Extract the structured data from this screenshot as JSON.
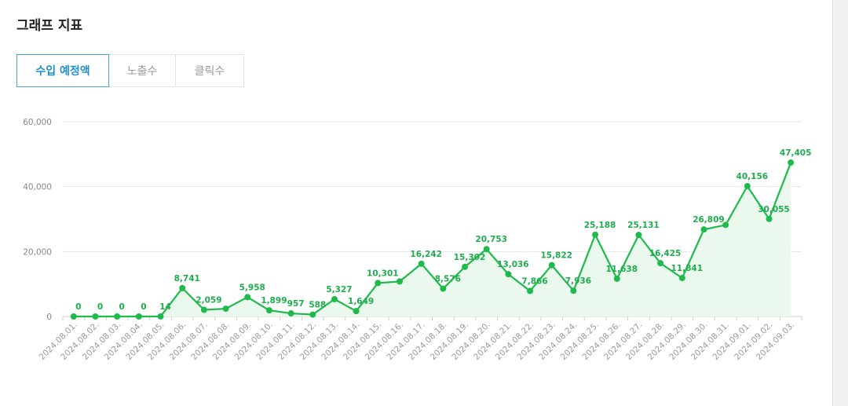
{
  "header": {
    "title": "그래프 지표"
  },
  "tabs": [
    {
      "label": "수입 예정액",
      "active": true
    },
    {
      "label": "노출수",
      "active": false
    },
    {
      "label": "클릭수",
      "active": false
    }
  ],
  "colors": {
    "line": "#1fba4c",
    "area": "#eaf8ee",
    "grid": "#e6e6e6",
    "active_tab": "#4aa8d8"
  },
  "chart_data": {
    "type": "area",
    "title": "",
    "xlabel": "",
    "ylabel": "",
    "ylim": [
      0,
      60000
    ],
    "yticks": [
      0,
      20000,
      40000,
      60000
    ],
    "ytick_labels": [
      "0",
      "20,000",
      "40,000",
      "60,000"
    ],
    "grid": true,
    "categories": [
      "2024.08.01.",
      "2024.08.02.",
      "2024.08.03.",
      "2024.08.04.",
      "2024.08.05.",
      "2024.08.06.",
      "2024.08.07.",
      "2024.08.08.",
      "2024.08.09.",
      "2024.08.10.",
      "2024.08.11.",
      "2024.08.12.",
      "2024.08.13.",
      "2024.08.14.",
      "2024.08.15.",
      "2024.08.16.",
      "2024.08.17.",
      "2024.08.18.",
      "2024.08.19.",
      "2024.08.20.",
      "2024.08.21.",
      "2024.08.22.",
      "2024.08.23.",
      "2024.08.24.",
      "2024.08.25.",
      "2024.08.26.",
      "2024.08.27.",
      "2024.08.28.",
      "2024.08.29.",
      "2024.08.30.",
      "2024.08.31.",
      "2024.09.01.",
      "2024.09.02.",
      "2024.09.03."
    ],
    "series": [
      {
        "values": [
          0,
          0,
          0,
          0,
          14,
          8741,
          2059,
          2400,
          5958,
          1899,
          957,
          588,
          5327,
          1649,
          10301,
          10800,
          16242,
          8576,
          15302,
          20753,
          13036,
          7866,
          15822,
          7936,
          25188,
          11638,
          25131,
          16425,
          11841,
          26809,
          28200,
          40156,
          30055,
          47405
        ],
        "data_labels": [
          "0",
          "0",
          "0",
          "0",
          "14",
          "8,741",
          "2,059",
          "",
          "5,958",
          "1,899",
          "957",
          "588",
          "5,327",
          "1,649",
          "10,301",
          "",
          "16,242",
          "8,576",
          "15,302",
          "20,753",
          "13,036",
          "7,866",
          "15,822",
          "7,936",
          "25,188",
          "11,638",
          "25,131",
          "16,425",
          "11,841",
          "26,809",
          "",
          "40,156",
          "30,055",
          "47,405"
        ]
      }
    ]
  }
}
